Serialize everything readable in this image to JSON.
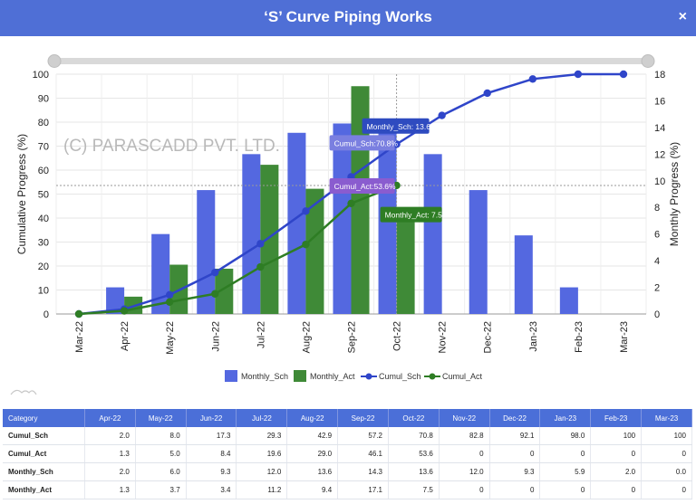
{
  "header": {
    "title": "‘S’ Curve Piping Works",
    "close_icon": "×"
  },
  "watermark": "(C) PARASCADD PVT. LTD.",
  "chart_data": {
    "type": "bar-line-combo",
    "categories": [
      "Mar-22",
      "Apr-22",
      "May-22",
      "Jun-22",
      "Jul-22",
      "Aug-22",
      "Sep-22",
      "Oct-22",
      "Nov-22",
      "Dec-22",
      "Jan-23",
      "Feb-23",
      "Mar-23"
    ],
    "left_axis": {
      "label": "Cumulative Progress (%)",
      "ylim": [
        0,
        100
      ],
      "ticks": [
        0,
        10,
        20,
        30,
        40,
        50,
        60,
        70,
        80,
        90,
        100
      ]
    },
    "right_axis": {
      "label": "Monthly Progress (%)",
      "ylim": [
        0,
        18
      ],
      "ticks": [
        0,
        2,
        4,
        6,
        8,
        10,
        12,
        14,
        16,
        18
      ]
    },
    "series": [
      {
        "name": "Monthly_Sch",
        "type": "bar",
        "axis": "right",
        "color": "#5468e0",
        "values": [
          0,
          2.0,
          6.0,
          9.3,
          12.0,
          13.6,
          14.3,
          13.6,
          12.0,
          9.3,
          5.9,
          2.0,
          0
        ]
      },
      {
        "name": "Monthly_Act",
        "type": "bar",
        "axis": "right",
        "color": "#3f8a37",
        "values": [
          0,
          1.3,
          3.7,
          3.4,
          11.2,
          9.4,
          17.1,
          7.5,
          0,
          0,
          0,
          0,
          0
        ]
      },
      {
        "name": "Cumul_Sch",
        "type": "line",
        "axis": "left",
        "color": "#2f45c9",
        "values": [
          0,
          2.0,
          8.0,
          17.3,
          29.3,
          42.9,
          57.2,
          70.8,
          82.8,
          92.1,
          98.0,
          100,
          100
        ]
      },
      {
        "name": "Cumul_Act",
        "type": "line",
        "axis": "left",
        "color": "#2e7d24",
        "values": [
          0,
          1.3,
          5.0,
          8.4,
          19.6,
          29.0,
          46.1,
          53.6,
          null,
          null,
          null,
          null,
          null
        ]
      }
    ],
    "tooltips": [
      {
        "label": "Monthly_Sch: 13.6",
        "color": "#2e4bc0"
      },
      {
        "label": "Cumul_Sch:70.8%",
        "color": "#7a7fe0"
      },
      {
        "label": "Cumul_Act:53.6%",
        "color": "#8a5ccf"
      },
      {
        "label": "Monthly_Act: 7.5",
        "color": "#2e7d24"
      }
    ],
    "legend": [
      "Monthly_Sch",
      "Monthly_Act",
      "Cumul_Sch",
      "Cumul_Act"
    ],
    "legend_position": "bottom",
    "grid": true
  },
  "table": {
    "headers": [
      "Category",
      "Apr-22",
      "May-22",
      "Jun-22",
      "Jul-22",
      "Aug-22",
      "Sep-22",
      "Oct-22",
      "Nov-22",
      "Dec-22",
      "Jan-23",
      "Feb-23",
      "Mar-23"
    ],
    "rows": [
      [
        "Cumul_Sch",
        "2.0",
        "8.0",
        "17.3",
        "29.3",
        "42.9",
        "57.2",
        "70.8",
        "82.8",
        "92.1",
        "98.0",
        "100",
        "100"
      ],
      [
        "Cumul_Act",
        "1.3",
        "5.0",
        "8.4",
        "19.6",
        "29.0",
        "46.1",
        "53.6",
        "0",
        "0",
        "0",
        "0",
        "0"
      ],
      [
        "Monthly_Sch",
        "2.0",
        "6.0",
        "9.3",
        "12.0",
        "13.6",
        "14.3",
        "13.6",
        "12.0",
        "9.3",
        "5.9",
        "2.0",
        "0.0"
      ],
      [
        "Monthly_Act",
        "1.3",
        "3.7",
        "3.4",
        "11.2",
        "9.4",
        "17.1",
        "7.5",
        "0",
        "0",
        "0",
        "0",
        "0"
      ]
    ]
  }
}
